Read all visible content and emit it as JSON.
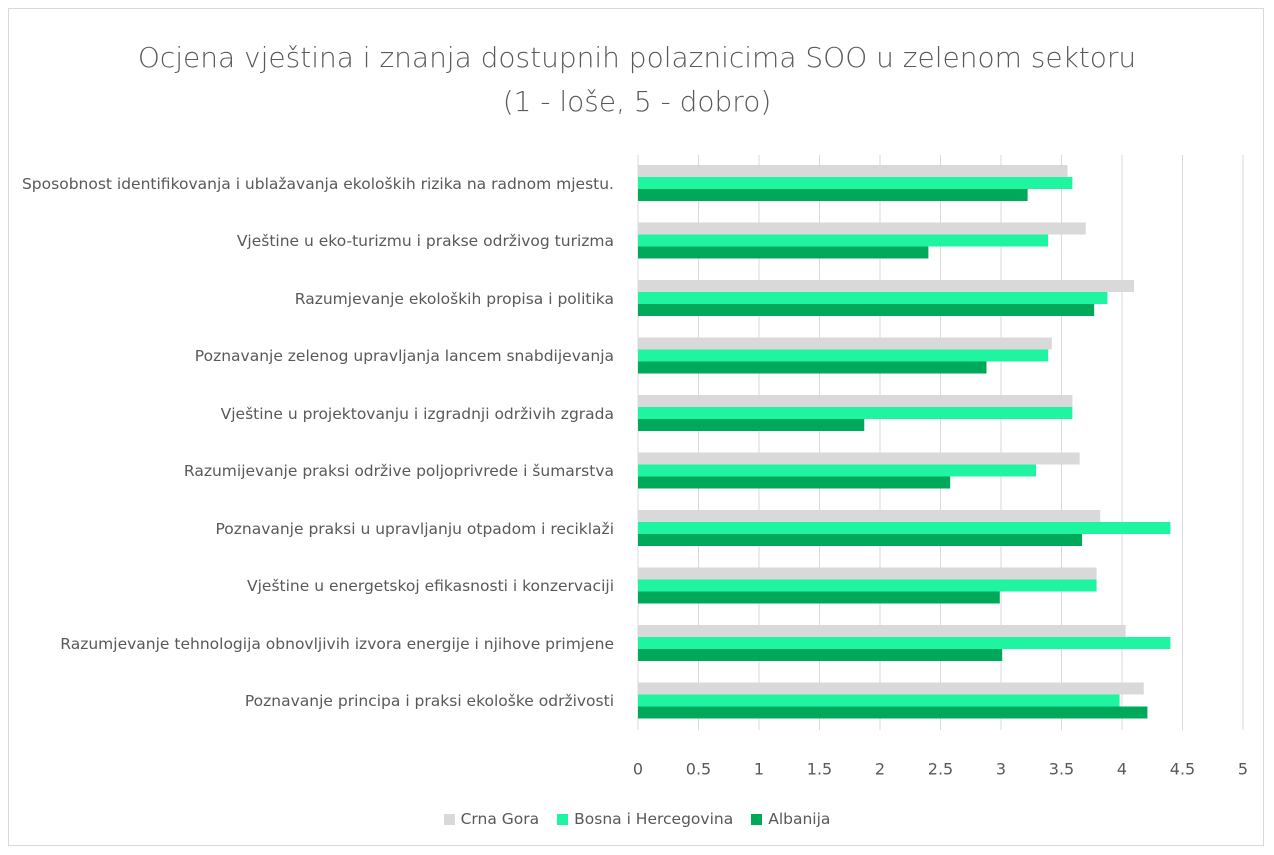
{
  "chart_data": {
    "type": "hbar",
    "title": "Ocjena vještina i znanja dostupnih polaznicima SOO u zelenom sektoru (1 - loše, 5 - dobro)",
    "categories": [
      "Sposobnost identifikovanja i ublažavanja ekoloških rizika na radnom mjestu.",
      "Vještine u eko-turizmu i prakse održivog turizma",
      "Razumjevanje ekoloških propisa i politika",
      "Poznavanje zelenog upravljanja lancem snabdijevanja",
      "Vještine u projektovanju i izgradnji održivih zgrada",
      "Razumijevanje praksi održive poljoprivrede i šumarstva",
      "Poznavanje praksi u upravljanju otpadom i reciklaži",
      "Vještine u energetskoj efikasnosti i konzervaciji",
      "Razumjevanje tehnologija obnovljivih izvora energije i njihove primjene",
      "Poznavanje principa i praksi ekološke održivosti"
    ],
    "series": [
      {
        "name": "Crna Gora",
        "color": "#d9d9d9",
        "values": [
          3.55,
          3.7,
          4.1,
          3.42,
          3.59,
          3.65,
          3.82,
          3.79,
          4.03,
          4.18
        ]
      },
      {
        "name": "Bosna i Hercegovina",
        "color": "#1ff5a0",
        "values": [
          3.59,
          3.39,
          3.88,
          3.39,
          3.59,
          3.29,
          4.4,
          3.79,
          4.4,
          3.98
        ]
      },
      {
        "name": "Albanija",
        "color": "#00a859",
        "values": [
          3.22,
          2.4,
          3.77,
          2.88,
          1.87,
          2.58,
          3.67,
          2.99,
          3.01,
          4.21
        ]
      }
    ],
    "xlim": [
      0,
      5
    ],
    "xticks": [
      0,
      0.5,
      1,
      1.5,
      2,
      2.5,
      3,
      3.5,
      4,
      4.5,
      5
    ],
    "grid": true,
    "legend": "bottom"
  }
}
